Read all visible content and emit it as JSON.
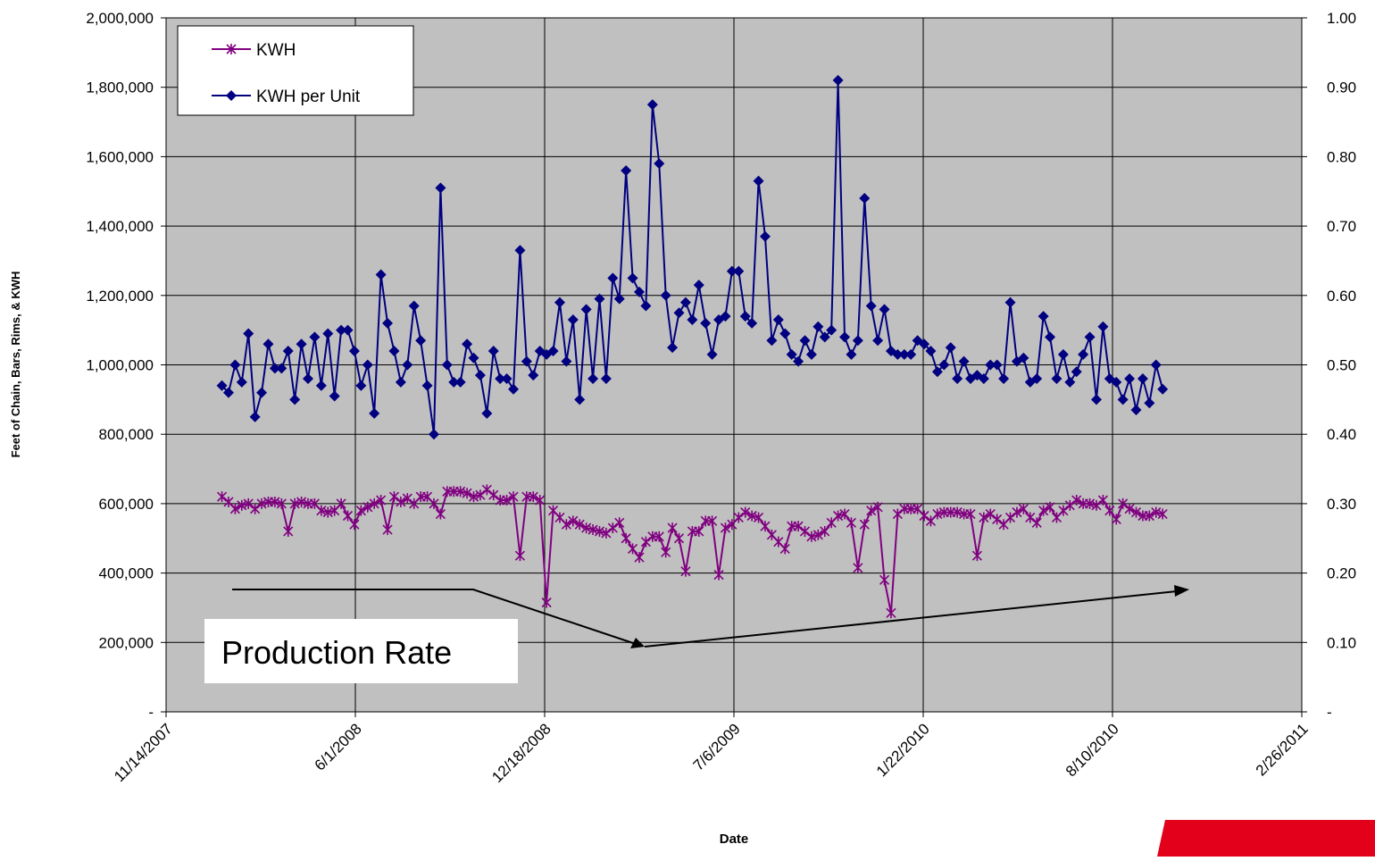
{
  "chart_data": {
    "type": "line",
    "y_label": "Feet of Chain, Bars, Rims, & KWH",
    "x_label": "Date",
    "annotation": "Production Rate",
    "legend": "upper-left",
    "grid": true,
    "xlim": [
      "11/14/2007",
      "2/26/2011"
    ],
    "xticks": [
      "11/14/2007",
      "6/1/2008",
      "12/18/2008",
      "7/6/2009",
      "1/22/2010",
      "8/10/2010",
      "2/26/2011"
    ],
    "ylim": [
      0,
      2000000
    ],
    "yticks": [
      {
        "value": 0,
        "label": "-"
      },
      {
        "value": 200000,
        "label": "200,000"
      },
      {
        "value": 400000,
        "label": "400,000"
      },
      {
        "value": 600000,
        "label": "600,000"
      },
      {
        "value": 800000,
        "label": "800,000"
      },
      {
        "value": 1000000,
        "label": "1,000,000"
      },
      {
        "value": 1200000,
        "label": "1,200,000"
      },
      {
        "value": 1400000,
        "label": "1,400,000"
      },
      {
        "value": 1600000,
        "label": "1,600,000"
      },
      {
        "value": 1800000,
        "label": "1,800,000"
      },
      {
        "value": 2000000,
        "label": "2,000,000"
      }
    ],
    "y2lim": [
      0,
      1
    ],
    "y2ticks": [
      {
        "value": 0,
        "label": "-"
      },
      {
        "value": 0.1,
        "label": "0.10"
      },
      {
        "value": 0.2,
        "label": "0.20"
      },
      {
        "value": 0.3,
        "label": "0.30"
      },
      {
        "value": 0.4,
        "label": "0.40"
      },
      {
        "value": 0.5,
        "label": "0.50"
      },
      {
        "value": 0.6,
        "label": "0.60"
      },
      {
        "value": 0.7,
        "label": "0.70"
      },
      {
        "value": 0.8,
        "label": "0.80"
      },
      {
        "value": 0.9,
        "label": "0.90"
      },
      {
        "value": 1,
        "label": "1.00"
      }
    ],
    "x": [
      "1/12/2008",
      "1/19/2008",
      "1/26/2008",
      "2/2/2008",
      "2/9/2008",
      "2/16/2008",
      "2/23/2008",
      "3/1/2008",
      "3/8/2008",
      "3/15/2008",
      "3/22/2008",
      "3/29/2008",
      "4/5/2008",
      "4/12/2008",
      "4/19/2008",
      "4/26/2008",
      "5/3/2008",
      "5/10/2008",
      "5/17/2008",
      "5/24/2008",
      "5/31/2008",
      "6/7/2008",
      "6/14/2008",
      "6/21/2008",
      "6/28/2008",
      "7/5/2008",
      "7/12/2008",
      "7/19/2008",
      "7/26/2008",
      "8/2/2008",
      "8/9/2008",
      "8/16/2008",
      "8/23/2008",
      "8/30/2008",
      "9/6/2008",
      "9/13/2008",
      "9/20/2008",
      "9/27/2008",
      "10/4/2008",
      "10/11/2008",
      "10/18/2008",
      "10/25/2008",
      "11/1/2008",
      "11/8/2008",
      "11/15/2008",
      "11/22/2008",
      "11/29/2008",
      "12/6/2008",
      "12/13/2008",
      "12/20/2008",
      "12/27/2008",
      "1/3/2009",
      "1/10/2009",
      "1/17/2009",
      "1/24/2009",
      "1/31/2009",
      "2/7/2009",
      "2/14/2009",
      "2/21/2009",
      "2/28/2009",
      "3/7/2009",
      "3/14/2009",
      "3/21/2009",
      "3/28/2009",
      "4/4/2009",
      "4/11/2009",
      "4/18/2009",
      "4/25/2009",
      "5/2/2009",
      "5/9/2009",
      "5/16/2009",
      "5/23/2009",
      "5/30/2009",
      "6/6/2009",
      "6/13/2009",
      "6/20/2009",
      "6/27/2009",
      "7/4/2009",
      "7/11/2009",
      "7/18/2009",
      "7/25/2009",
      "8/1/2009",
      "8/8/2009",
      "8/15/2009",
      "8/22/2009",
      "8/29/2009",
      "9/5/2009",
      "9/12/2009",
      "9/19/2009",
      "9/26/2009",
      "10/3/2009",
      "10/10/2009",
      "10/17/2009",
      "10/24/2009",
      "10/31/2009",
      "11/7/2009",
      "11/14/2009",
      "11/21/2009",
      "11/28/2009",
      "12/5/2009",
      "12/12/2009",
      "12/19/2009",
      "12/26/2009",
      "1/2/2010",
      "1/9/2010",
      "1/16/2010",
      "1/23/2010",
      "1/30/2010",
      "2/6/2010",
      "2/13/2010",
      "2/20/2010",
      "2/27/2010",
      "3/6/2010",
      "3/13/2010",
      "3/20/2010",
      "3/27/2010",
      "4/3/2010",
      "4/10/2010",
      "4/17/2010",
      "4/24/2010",
      "5/1/2010",
      "5/8/2010",
      "5/15/2010",
      "5/22/2010",
      "5/29/2010",
      "6/5/2010",
      "6/12/2010",
      "6/19/2010",
      "6/26/2010",
      "7/3/2010",
      "7/10/2010",
      "7/17/2010",
      "7/24/2010",
      "7/31/2010",
      "8/7/2010",
      "8/14/2010",
      "8/21/2010",
      "8/28/2010",
      "9/4/2010",
      "9/11/2010",
      "9/18/2010",
      "9/25/2010",
      "10/2/2010"
    ],
    "series": [
      {
        "name": "KWH",
        "color": "#800080",
        "marker": "star",
        "values": [
          620000,
          605000,
          585000,
          595000,
          600000,
          585000,
          600000,
          605000,
          605000,
          600000,
          520000,
          600000,
          605000,
          600000,
          600000,
          580000,
          575000,
          580000,
          600000,
          565000,
          540000,
          580000,
          590000,
          600000,
          610000,
          525000,
          620000,
          605000,
          615000,
          600000,
          620000,
          620000,
          600000,
          570000,
          635000,
          635000,
          635000,
          630000,
          620000,
          625000,
          640000,
          625000,
          610000,
          610000,
          620000,
          450000,
          620000,
          620000,
          610000,
          315000,
          580000,
          560000,
          540000,
          550000,
          540000,
          530000,
          525000,
          520000,
          515000,
          530000,
          545000,
          500000,
          470000,
          445000,
          490000,
          505000,
          505000,
          460000,
          530000,
          500000,
          405000,
          520000,
          520000,
          550000,
          550000,
          395000,
          530000,
          540000,
          560000,
          575000,
          565000,
          560000,
          535000,
          510000,
          490000,
          470000,
          535000,
          535000,
          520000,
          505000,
          510000,
          520000,
          545000,
          565000,
          570000,
          545000,
          415000,
          540000,
          580000,
          590000,
          380000,
          285000,
          570000,
          585000,
          585000,
          585000,
          565000,
          550000,
          570000,
          575000,
          575000,
          575000,
          570000,
          570000,
          450000,
          560000,
          570000,
          555000,
          540000,
          560000,
          575000,
          585000,
          560000,
          545000,
          580000,
          590000,
          560000,
          580000,
          595000,
          610000,
          600000,
          600000,
          595000,
          610000,
          580000,
          555000,
          600000,
          585000,
          575000,
          565000,
          565000,
          575000,
          570000
        ]
      },
      {
        "name": "KWH per Unit",
        "color": "#000080",
        "marker": "diamond",
        "axis": "y2",
        "values": [
          0.47,
          0.46,
          0.5,
          0.475,
          0.545,
          0.425,
          0.46,
          0.53,
          0.495,
          0.495,
          0.52,
          0.45,
          0.53,
          0.48,
          0.54,
          0.47,
          0.545,
          0.455,
          0.55,
          0.55,
          0.52,
          0.47,
          0.5,
          0.43,
          0.63,
          0.56,
          0.52,
          0.475,
          0.5,
          0.585,
          0.535,
          0.47,
          0.4,
          0.755,
          0.5,
          0.475,
          0.475,
          0.53,
          0.51,
          0.485,
          0.43,
          0.52,
          0.48,
          0.48,
          0.465,
          0.665,
          0.505,
          0.485,
          0.52,
          0.515,
          0.52,
          0.59,
          0.505,
          0.565,
          0.45,
          0.58,
          0.48,
          0.595,
          0.48,
          0.625,
          0.595,
          0.78,
          0.625,
          0.605,
          0.585,
          0.875,
          0.79,
          0.6,
          0.525,
          0.575,
          0.59,
          0.565,
          0.615,
          0.56,
          0.515,
          0.565,
          0.57,
          0.635,
          0.635,
          0.57,
          0.56,
          0.765,
          0.685,
          0.535,
          0.565,
          0.545,
          0.515,
          0.505,
          0.535,
          0.515,
          0.555,
          0.54,
          0.55,
          0.91,
          0.54,
          0.515,
          0.535,
          0.74,
          0.585,
          0.535,
          0.58,
          0.52,
          0.515,
          0.515,
          0.515,
          0.535,
          0.53,
          0.52,
          0.49,
          0.5,
          0.525,
          0.48,
          0.505,
          0.48,
          0.485,
          0.48,
          0.5,
          0.5,
          0.48,
          0.59,
          0.505,
          0.51,
          0.475,
          0.48,
          0.57,
          0.54,
          0.48,
          0.515,
          0.475,
          0.49,
          0.515,
          0.54,
          0.45,
          0.555,
          0.48,
          0.475,
          0.45,
          0.48,
          0.435,
          0.48,
          0.445,
          0.5,
          0.465
        ]
      }
    ]
  }
}
